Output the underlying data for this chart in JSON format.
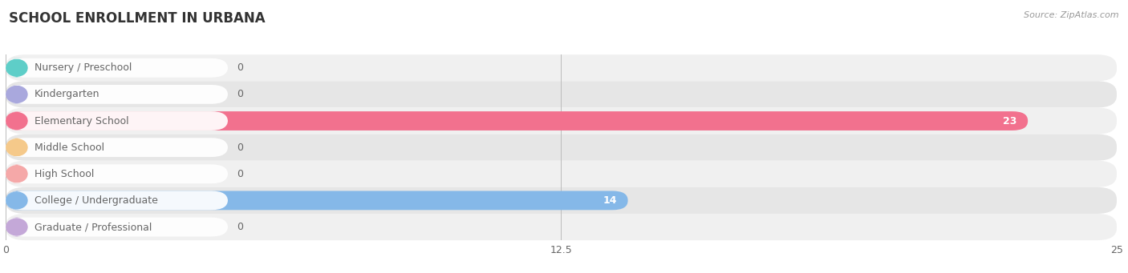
{
  "title": "SCHOOL ENROLLMENT IN URBANA",
  "source": "Source: ZipAtlas.com",
  "categories": [
    "Nursery / Preschool",
    "Kindergarten",
    "Elementary School",
    "Middle School",
    "High School",
    "College / Undergraduate",
    "Graduate / Professional"
  ],
  "values": [
    0,
    0,
    23,
    0,
    0,
    14,
    0
  ],
  "bar_colors": [
    "#5ecec8",
    "#a9a8dd",
    "#f2718e",
    "#f5c98a",
    "#f5a8a8",
    "#85b8e8",
    "#c4a8d8"
  ],
  "row_bg_colors": [
    "#f0f0f0",
    "#e6e6e6"
  ],
  "xlim": [
    0,
    25
  ],
  "xticks": [
    0,
    12.5,
    25
  ],
  "label_color": "#666666",
  "value_color_inside": "#ffffff",
  "value_color_outside": "#666666",
  "title_color": "#333333",
  "source_color": "#999999",
  "bar_height": 0.72,
  "label_fontsize": 9,
  "value_fontsize": 9,
  "title_fontsize": 12
}
